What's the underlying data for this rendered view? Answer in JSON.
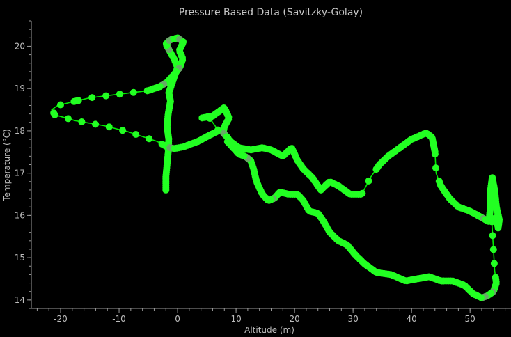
{
  "chart_data": {
    "type": "line",
    "title": "Pressure Based Data (Savitzky-Golay)",
    "xlabel": "Altitude (m)",
    "ylabel": "Temperature (°C)",
    "xlim": [
      -25,
      57
    ],
    "ylim": [
      13.8,
      20.6
    ],
    "xticks": [
      -20,
      -10,
      0,
      10,
      20,
      30,
      40,
      50
    ],
    "yticks": [
      14,
      15,
      16,
      17,
      18,
      19,
      20
    ],
    "xminor_step": 2,
    "yminor_step": 0.2,
    "grid": false,
    "legend": "none",
    "line_color": "#00ee00",
    "marker_color": "#22ff22",
    "marker_color_dense": "#66aa66",
    "series": [
      {
        "points": [
          [
            -2.0,
            16.6
          ],
          [
            -2.0,
            16.9
          ],
          [
            -1.8,
            17.2
          ],
          [
            -1.6,
            17.5
          ],
          [
            -1.5,
            17.8
          ],
          [
            -1.8,
            18.1
          ],
          [
            -1.6,
            18.4
          ],
          [
            -1.2,
            18.7
          ],
          [
            -1.5,
            18.9
          ],
          [
            -1.0,
            19.1
          ],
          [
            -0.5,
            19.3
          ],
          [
            0.0,
            19.5
          ],
          [
            -0.6,
            19.7
          ],
          [
            -1.4,
            19.9
          ],
          [
            -2.0,
            20.05
          ],
          [
            -1.3,
            20.15
          ],
          [
            0.0,
            20.2
          ],
          [
            1.0,
            20.1
          ],
          [
            0.3,
            19.9
          ],
          [
            0.9,
            19.7
          ],
          [
            0.4,
            19.5
          ],
          [
            -0.5,
            19.35
          ],
          [
            -1.8,
            19.15
          ],
          [
            -3.0,
            19.05
          ],
          [
            -5.0,
            18.95
          ],
          [
            -11.0,
            18.85
          ],
          [
            -15.0,
            18.78
          ],
          [
            -17.5,
            18.7
          ],
          [
            -20.5,
            18.6
          ],
          [
            -21.5,
            18.5
          ],
          [
            -21.0,
            18.38
          ],
          [
            -17.5,
            18.24
          ],
          [
            -12.5,
            18.12
          ],
          [
            -8.5,
            17.98
          ],
          [
            -3.5,
            17.75
          ],
          [
            -1.8,
            17.62
          ],
          [
            -0.6,
            17.58
          ],
          [
            1.0,
            17.62
          ],
          [
            3.5,
            17.75
          ],
          [
            5.5,
            17.9
          ],
          [
            7.0,
            18.0
          ],
          [
            5.0,
            18.4
          ],
          [
            4.0,
            18.3
          ],
          [
            6.0,
            18.35
          ],
          [
            8.0,
            18.55
          ],
          [
            8.8,
            18.3
          ],
          [
            8.0,
            18.1
          ],
          [
            7.8,
            17.95
          ],
          [
            8.5,
            17.85
          ],
          [
            9.0,
            17.75
          ],
          [
            10.5,
            17.6
          ],
          [
            12.5,
            17.55
          ],
          [
            14.5,
            17.6
          ],
          [
            16.0,
            17.55
          ],
          [
            18.0,
            17.4
          ],
          [
            19.5,
            17.6
          ],
          [
            20.5,
            17.3
          ],
          [
            21.5,
            17.1
          ],
          [
            23.0,
            16.9
          ],
          [
            24.5,
            16.6
          ],
          [
            26.0,
            16.8
          ],
          [
            27.5,
            16.7
          ],
          [
            29.5,
            16.5
          ],
          [
            31.5,
            16.5
          ],
          [
            33.0,
            16.9
          ],
          [
            34.5,
            17.2
          ],
          [
            36.0,
            17.4
          ],
          [
            38.0,
            17.6
          ],
          [
            40.0,
            17.8
          ],
          [
            42.5,
            17.95
          ],
          [
            43.5,
            17.85
          ],
          [
            44.0,
            17.5
          ],
          [
            44.2,
            17.0
          ],
          [
            45.0,
            16.7
          ],
          [
            46.5,
            16.4
          ],
          [
            48.0,
            16.2
          ],
          [
            50.0,
            16.1
          ],
          [
            52.0,
            15.95
          ],
          [
            53.2,
            15.85
          ],
          [
            53.5,
            16.2
          ],
          [
            53.5,
            16.6
          ],
          [
            53.8,
            16.9
          ],
          [
            54.2,
            16.6
          ],
          [
            54.5,
            16.2
          ],
          [
            55.0,
            15.9
          ],
          [
            54.8,
            15.7
          ],
          [
            54.5,
            15.95
          ],
          [
            53.7,
            15.9
          ],
          [
            54.0,
            15.2
          ],
          [
            54.2,
            14.7
          ],
          [
            54.5,
            14.4
          ],
          [
            54.0,
            14.2
          ],
          [
            53.0,
            14.1
          ],
          [
            52.0,
            14.05
          ],
          [
            50.5,
            14.15
          ],
          [
            49.0,
            14.35
          ],
          [
            47.0,
            14.45
          ],
          [
            45.0,
            14.45
          ],
          [
            43.0,
            14.55
          ],
          [
            41.0,
            14.5
          ],
          [
            39.0,
            14.45
          ],
          [
            36.5,
            14.6
          ],
          [
            34.0,
            14.65
          ],
          [
            32.0,
            14.85
          ],
          [
            30.5,
            15.05
          ],
          [
            29.0,
            15.3
          ],
          [
            27.5,
            15.4
          ],
          [
            26.0,
            15.6
          ],
          [
            25.0,
            15.85
          ],
          [
            24.0,
            16.05
          ],
          [
            22.5,
            16.1
          ],
          [
            21.5,
            16.35
          ],
          [
            20.5,
            16.5
          ],
          [
            19.0,
            16.5
          ],
          [
            17.5,
            16.55
          ],
          [
            16.5,
            16.4
          ],
          [
            15.5,
            16.35
          ],
          [
            14.5,
            16.5
          ],
          [
            13.5,
            16.8
          ],
          [
            13.0,
            17.1
          ],
          [
            12.5,
            17.3
          ],
          [
            11.5,
            17.4
          ],
          [
            10.5,
            17.45
          ],
          [
            9.5,
            17.6
          ],
          [
            8.5,
            17.75
          ]
        ]
      }
    ]
  }
}
